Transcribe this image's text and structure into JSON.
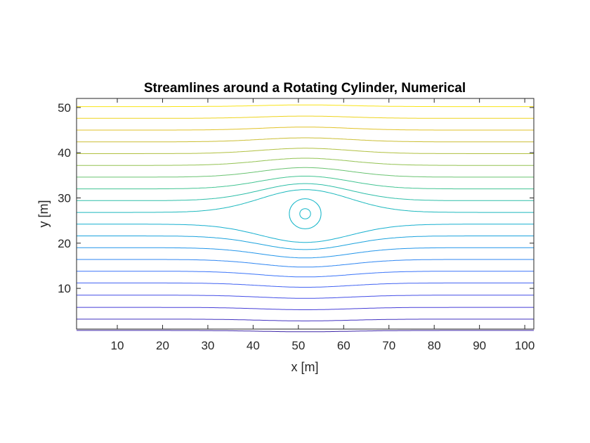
{
  "chart_data": {
    "type": "contour",
    "title": "Streamlines around a Rotating Cylinder, Numerical",
    "xlabel": "x [m]",
    "ylabel": "y [m]",
    "xlim": [
      1,
      102
    ],
    "ylim": [
      1,
      52
    ],
    "xticks": [
      10,
      20,
      30,
      40,
      50,
      60,
      70,
      80,
      90,
      100
    ],
    "yticks": [
      10,
      20,
      30,
      40,
      50
    ],
    "grid": false,
    "legend": false,
    "colormap": [
      "#3e26a8",
      "#4743e0",
      "#3d70fb",
      "#2097e9",
      "#13b5c8",
      "#3dc496",
      "#9dc24a",
      "#dcbc2b",
      "#f9e416"
    ],
    "cylinder_center": [
      51.5,
      26.5
    ],
    "vortex_radii": [
      1.2,
      3.5
    ],
    "streamlines_y_far": [
      0.7,
      3.2,
      5.8,
      8.5,
      11.2,
      13.8,
      16.4,
      19.0,
      21.6,
      24.2,
      26.8,
      29.4,
      32.0,
      34.6,
      37.2,
      39.8,
      42.4,
      45.0,
      47.6,
      50.2
    ]
  }
}
